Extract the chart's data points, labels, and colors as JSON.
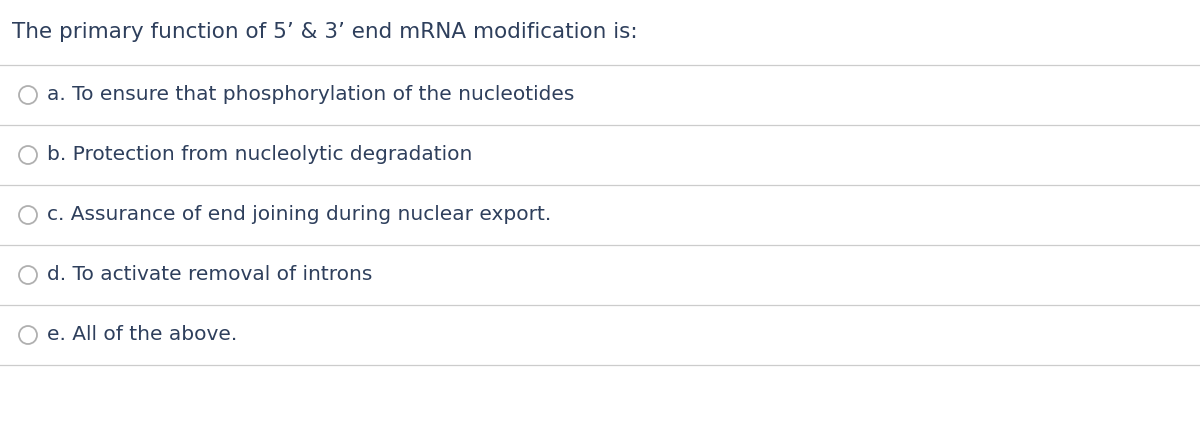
{
  "title": "The primary function of 5’ & 3’ end mRNA modification is:",
  "options": [
    "a. To ensure that phosphorylation of the nucleotides",
    "b. Protection from nucleolytic degradation",
    "c. Assurance of end joining during nuclear export.",
    "d. To activate removal of introns",
    "e. All of the above."
  ],
  "background_color": "#ffffff",
  "text_color": "#2e3f5c",
  "title_color": "#2e3f5c",
  "line_color": "#cccccc",
  "circle_edge_color": "#b0b0b0",
  "title_fontsize": 15.5,
  "option_fontsize": 14.5,
  "fig_width": 12.0,
  "fig_height": 4.21
}
